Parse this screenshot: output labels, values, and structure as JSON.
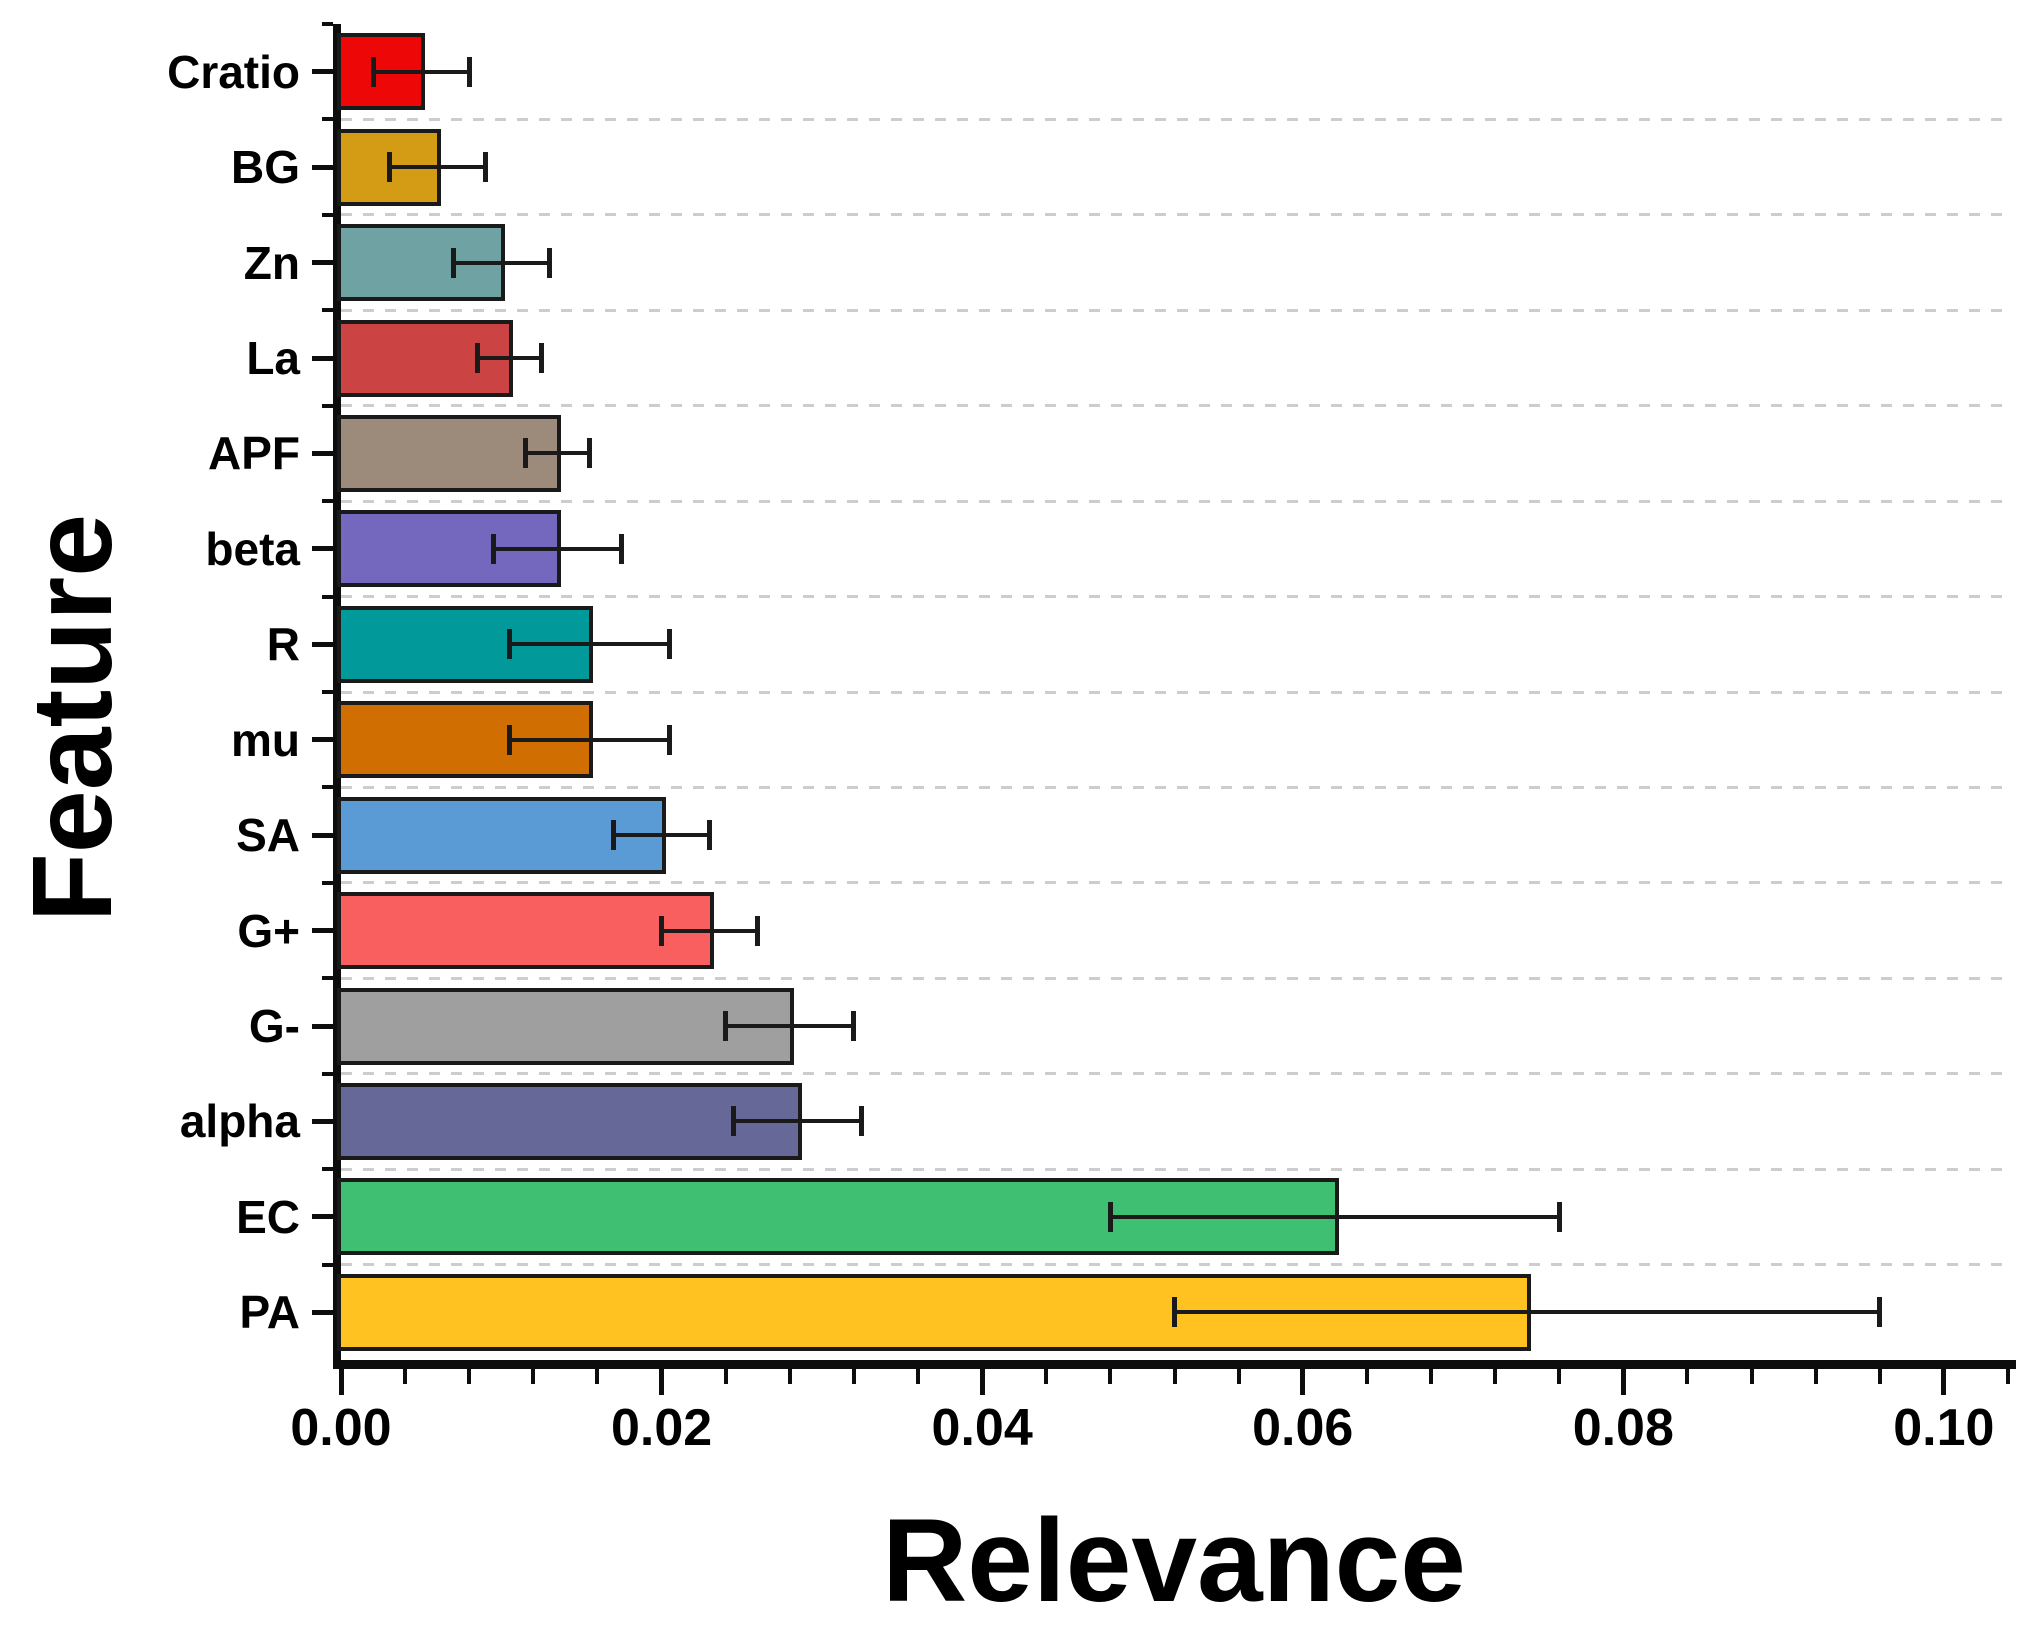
{
  "chart_data": {
    "type": "bar",
    "orientation": "horizontal",
    "xlabel": "Relevance",
    "ylabel": "Feature",
    "xlim": [
      0,
      0.104
    ],
    "x_tick_values": [
      0,
      0.02,
      0.04,
      0.06,
      0.08,
      0.1
    ],
    "x_tick_labels": [
      "0.00",
      "0.02",
      "0.04",
      "0.06",
      "0.08",
      "0.10"
    ],
    "x_minor_tick_step": 0.004,
    "grid": "dashed light-gray horizontal lines between category rows",
    "legend": "none",
    "categories_top_to_bottom": [
      "Cratio",
      "BG",
      "Zn",
      "La",
      "APF",
      "beta",
      "R",
      "mu",
      "SA",
      "G+",
      "G-",
      "alpha",
      "EC",
      "PA"
    ],
    "series": [
      {
        "name": "Relevance",
        "values": [
          0.005,
          0.006,
          0.01,
          0.0105,
          0.0135,
          0.0135,
          0.0155,
          0.0155,
          0.02,
          0.023,
          0.028,
          0.0285,
          0.062,
          0.074
        ],
        "errors": [
          0.003,
          0.003,
          0.003,
          0.002,
          0.002,
          0.004,
          0.005,
          0.005,
          0.003,
          0.003,
          0.004,
          0.004,
          0.014,
          0.022
        ]
      }
    ],
    "bar_colors": [
      "#ee0707",
      "#d39c14",
      "#6fa3a3",
      "#cb4343",
      "#9c8b7b",
      "#7368be",
      "#019999",
      "#d06e02",
      "#5b9bd5",
      "#f95f5f",
      "#9f9f9f",
      "#666998",
      "#3fbf72",
      "#ffc220"
    ],
    "bar_outline_color": "#1a1a1a",
    "error_bar_color": "#1a1a1a",
    "axis_color": "#0d0d0d",
    "gridline_color": "#cdcdcd"
  }
}
